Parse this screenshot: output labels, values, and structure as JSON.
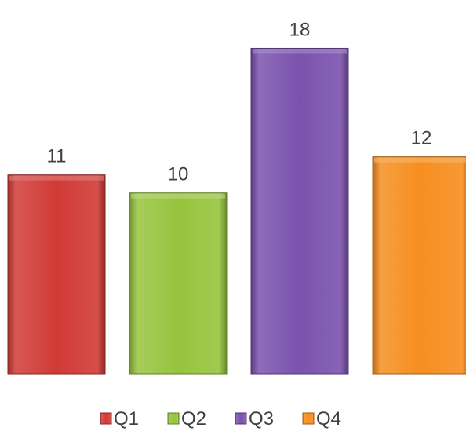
{
  "chart_data": {
    "type": "bar",
    "categories": [
      "Q1",
      "Q2",
      "Q3",
      "Q4"
    ],
    "values": [
      11,
      10,
      18,
      12
    ],
    "colors": [
      "#D03A36",
      "#96C43D",
      "#7B52AE",
      "#F68E1F"
    ],
    "ylim": [
      0,
      19.8
    ],
    "grid": false,
    "legend": "bottom"
  }
}
